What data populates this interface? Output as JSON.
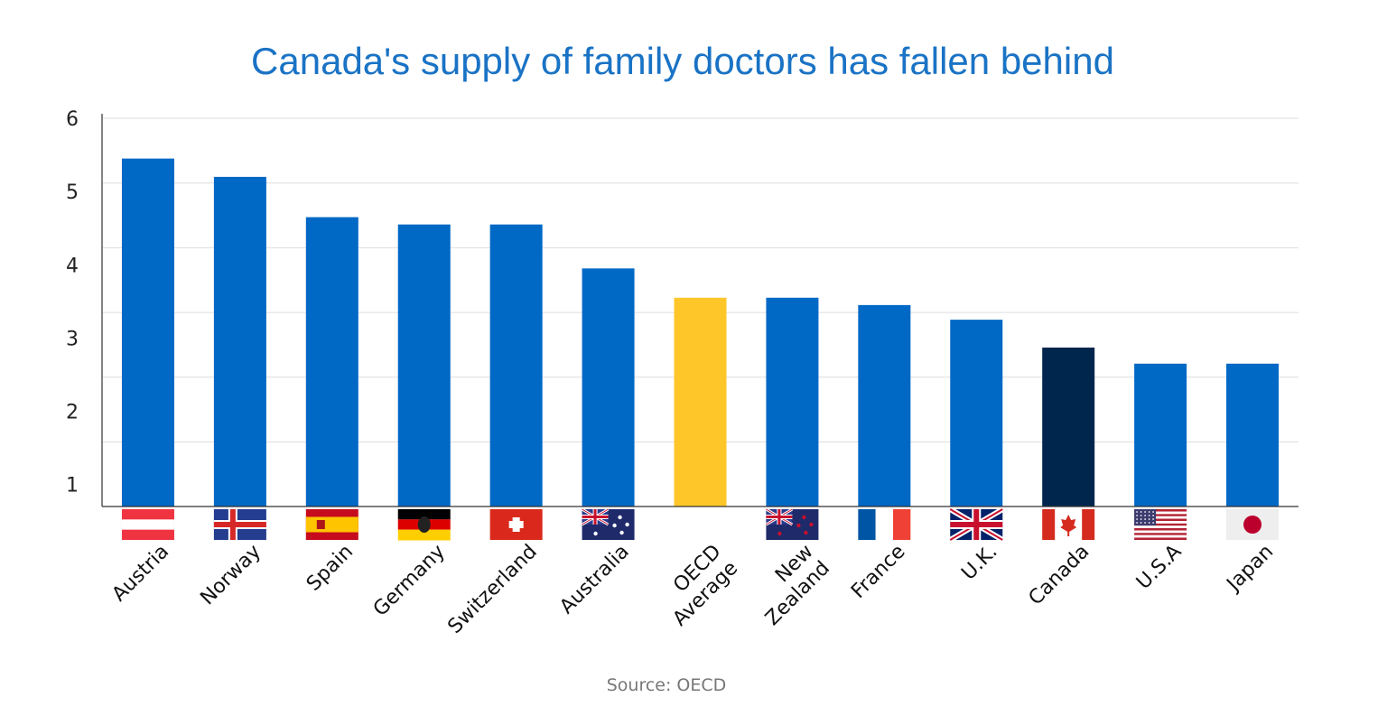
{
  "chart_data": {
    "type": "bar",
    "title": "Canada's supply of family doctors has fallen behind",
    "source": "Source: OECD",
    "ylim": [
      0.7,
      6
    ],
    "yticks": [
      1,
      2,
      3,
      4,
      5,
      6
    ],
    "grid": true,
    "xlabel": "",
    "ylabel": "",
    "categories": [
      "Austria",
      "Norway",
      "Spain",
      "Germany",
      "Switzerland",
      "Australia",
      "OECD Average",
      "New Zealand",
      "France",
      "U.K.",
      "Canada",
      "U.S.A",
      "Japan"
    ],
    "values": [
      5.45,
      5.2,
      4.65,
      4.55,
      4.55,
      3.95,
      3.55,
      3.55,
      3.45,
      3.25,
      2.87,
      2.65,
      2.65
    ],
    "highlight": {
      "OECD Average": "#ffc629",
      "Canada": "#00264d"
    },
    "flags": [
      "austria-flag",
      "norway-flag",
      "spain-flag",
      "germany-flag",
      "switzerland-flag",
      "australia-flag",
      "",
      "new-zealand-flag",
      "france-flag",
      "uk-flag",
      "canada-flag",
      "usa-flag",
      "japan-flag"
    ],
    "colors": {
      "bar": "#0068c5",
      "title": "#1a73c5",
      "grid": "#dddddd",
      "axis": "#333333"
    }
  }
}
